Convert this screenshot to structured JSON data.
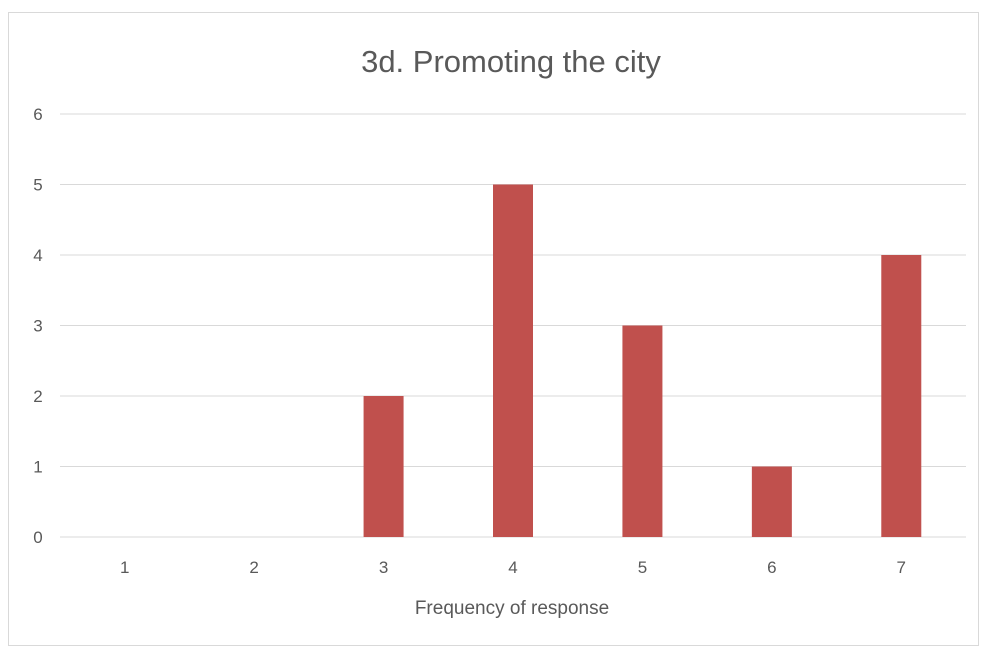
{
  "chart_data": {
    "type": "bar",
    "title": "3d. Promoting the city",
    "xlabel": "Frequency of response",
    "ylabel": "",
    "categories": [
      "1",
      "2",
      "3",
      "4",
      "5",
      "6",
      "7"
    ],
    "values": [
      0,
      0,
      2,
      5,
      3,
      1,
      4
    ],
    "ylim": [
      0,
      6
    ],
    "yticks": [
      "0",
      "1",
      "2",
      "3",
      "4",
      "5",
      "6"
    ],
    "grid": true,
    "legend": "none",
    "bar_color": "#c0504d"
  }
}
